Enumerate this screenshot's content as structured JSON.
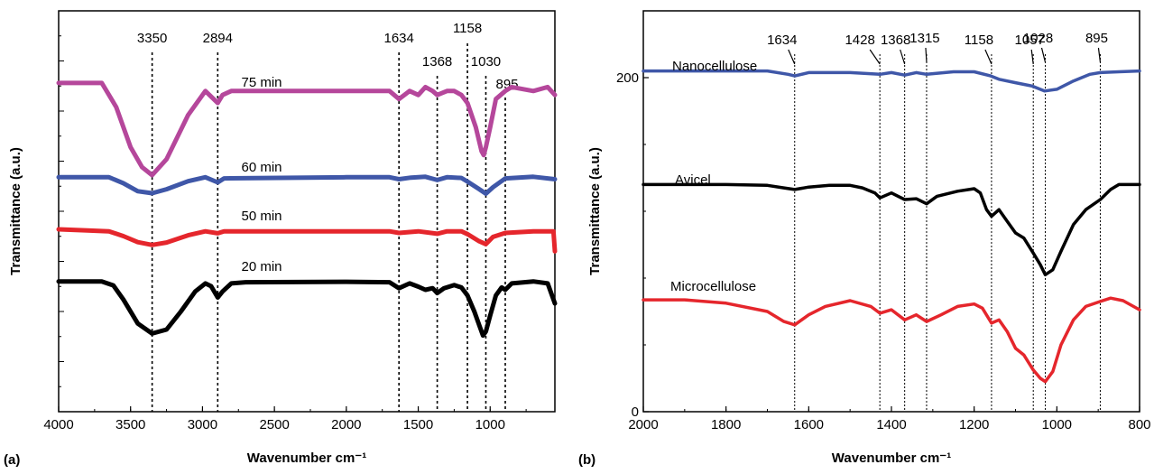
{
  "chart_data": [
    {
      "type": "line",
      "panel_label": "(a)",
      "xlabel": "Wavenumber cm⁻¹",
      "ylabel": "Transmittance (a.u.)",
      "xlim": [
        4000,
        550
      ],
      "x_ticks": [
        4000,
        3500,
        3000,
        2500,
        2000,
        1500,
        1000
      ],
      "y_tick_labels": "none",
      "ylim": [
        0,
        100
      ],
      "peak_lines": [
        {
          "label": "3350",
          "x": 3350
        },
        {
          "label": "2894",
          "x": 2894
        },
        {
          "label": "1634",
          "x": 1634
        },
        {
          "label": "1368",
          "x": 1368
        },
        {
          "label": "1158",
          "x": 1158
        },
        {
          "label": "1030",
          "x": 1030
        },
        {
          "label": "895",
          "x": 895
        }
      ],
      "series": [
        {
          "name": "75 min",
          "color": "#b5479b",
          "base": 82,
          "points": [
            [
              4000,
              82
            ],
            [
              3700,
              82
            ],
            [
              3600,
              76
            ],
            [
              3500,
              66
            ],
            [
              3420,
              61
            ],
            [
              3350,
              59
            ],
            [
              3250,
              63
            ],
            [
              3100,
              74
            ],
            [
              2980,
              80
            ],
            [
              2894,
              77
            ],
            [
              2860,
              79
            ],
            [
              2800,
              80
            ],
            [
              2000,
              80
            ],
            [
              1700,
              80
            ],
            [
              1634,
              78
            ],
            [
              1560,
              80
            ],
            [
              1500,
              79
            ],
            [
              1450,
              81
            ],
            [
              1400,
              80
            ],
            [
              1368,
              79
            ],
            [
              1300,
              80
            ],
            [
              1250,
              80
            ],
            [
              1200,
              79
            ],
            [
              1158,
              77
            ],
            [
              1100,
              71
            ],
            [
              1060,
              65
            ],
            [
              1045,
              64
            ],
            [
              1030,
              66
            ],
            [
              1000,
              71
            ],
            [
              960,
              78
            ],
            [
              895,
              80
            ],
            [
              850,
              81
            ],
            [
              700,
              80
            ],
            [
              600,
              81
            ],
            [
              550,
              79
            ]
          ]
        },
        {
          "name": "60 min",
          "color": "#3f57a8",
          "base": 58.5,
          "points": [
            [
              4000,
              58.5
            ],
            [
              3650,
              58.5
            ],
            [
              3550,
              57
            ],
            [
              3450,
              55
            ],
            [
              3350,
              54.5
            ],
            [
              3250,
              55.5
            ],
            [
              3100,
              57.5
            ],
            [
              2980,
              58.5
            ],
            [
              2894,
              57.2
            ],
            [
              2850,
              58.2
            ],
            [
              2000,
              58.5
            ],
            [
              1700,
              58.5
            ],
            [
              1634,
              58
            ],
            [
              1550,
              58.4
            ],
            [
              1450,
              58.6
            ],
            [
              1368,
              57.8
            ],
            [
              1300,
              58.5
            ],
            [
              1200,
              58.3
            ],
            [
              1158,
              57.4
            ],
            [
              1080,
              55.6
            ],
            [
              1030,
              54.4
            ],
            [
              980,
              56
            ],
            [
              895,
              58.2
            ],
            [
              700,
              58.6
            ],
            [
              550,
              58
            ]
          ]
        },
        {
          "name": "50 min",
          "color": "#e5262c",
          "base": 45,
          "points": [
            [
              4000,
              45.5
            ],
            [
              3800,
              45.2
            ],
            [
              3650,
              45
            ],
            [
              3550,
              43.8
            ],
            [
              3450,
              42.3
            ],
            [
              3350,
              41.6
            ],
            [
              3250,
              42.2
            ],
            [
              3100,
              44
            ],
            [
              2980,
              45
            ],
            [
              2894,
              44.5
            ],
            [
              2850,
              45
            ],
            [
              2000,
              45
            ],
            [
              1700,
              45
            ],
            [
              1634,
              44.6
            ],
            [
              1500,
              45
            ],
            [
              1368,
              44.4
            ],
            [
              1300,
              45
            ],
            [
              1200,
              45
            ],
            [
              1158,
              44.3
            ],
            [
              1080,
              42.6
            ],
            [
              1030,
              41.8
            ],
            [
              980,
              43.6
            ],
            [
              895,
              44.6
            ],
            [
              700,
              45
            ],
            [
              560,
              45
            ],
            [
              550,
              40
            ]
          ]
        },
        {
          "name": "20 min",
          "color": "#000000",
          "base": 32,
          "points": [
            [
              4000,
              32.5
            ],
            [
              3700,
              32.5
            ],
            [
              3620,
              31.5
            ],
            [
              3550,
              28
            ],
            [
              3450,
              22
            ],
            [
              3350,
              19.5
            ],
            [
              3250,
              20.5
            ],
            [
              3150,
              25
            ],
            [
              3050,
              30
            ],
            [
              2980,
              32
            ],
            [
              2940,
              31.3
            ],
            [
              2894,
              28.5
            ],
            [
              2860,
              30
            ],
            [
              2800,
              32
            ],
            [
              2700,
              32.3
            ],
            [
              2000,
              32.4
            ],
            [
              1700,
              32.3
            ],
            [
              1634,
              30.8
            ],
            [
              1560,
              32
            ],
            [
              1500,
              31.2
            ],
            [
              1450,
              30.4
            ],
            [
              1400,
              30.8
            ],
            [
              1368,
              29.6
            ],
            [
              1320,
              30.8
            ],
            [
              1250,
              31.6
            ],
            [
              1200,
              31
            ],
            [
              1158,
              29
            ],
            [
              1110,
              25
            ],
            [
              1070,
              21
            ],
            [
              1050,
              19
            ],
            [
              1030,
              20
            ],
            [
              1000,
              24
            ],
            [
              960,
              29
            ],
            [
              920,
              31
            ],
            [
              895,
              30.4
            ],
            [
              850,
              32
            ],
            [
              700,
              32.5
            ],
            [
              600,
              32
            ],
            [
              550,
              27
            ]
          ]
        }
      ]
    },
    {
      "type": "line",
      "panel_label": "(b)",
      "xlabel": "Wavenumber cm⁻¹",
      "ylabel": "Transmittance (a.u.)",
      "xlim": [
        2000,
        800
      ],
      "x_ticks": [
        2000,
        1800,
        1600,
        1400,
        1200,
        1000,
        800
      ],
      "ylim": [
        0,
        240
      ],
      "y_ticks": [
        0,
        200
      ],
      "peak_lines": [
        {
          "label": "1634",
          "x": 1634
        },
        {
          "label": "1428",
          "x": 1428
        },
        {
          "label": "1368",
          "x": 1368
        },
        {
          "label": "1315",
          "x": 1315
        },
        {
          "label": "1158",
          "x": 1158
        },
        {
          "label": "1057",
          "x": 1057
        },
        {
          "label": "1028",
          "x": 1028
        },
        {
          "label": "895",
          "x": 895
        }
      ],
      "series": [
        {
          "name": "Nanocellulose",
          "color": "#3f57a8",
          "points": [
            [
              2000,
              204
            ],
            [
              1800,
              204
            ],
            [
              1700,
              204
            ],
            [
              1650,
              202
            ],
            [
              1634,
              201
            ],
            [
              1600,
              203
            ],
            [
              1500,
              203
            ],
            [
              1428,
              202
            ],
            [
              1400,
              203
            ],
            [
              1368,
              201.5
            ],
            [
              1340,
              203
            ],
            [
              1315,
              202
            ],
            [
              1250,
              203.5
            ],
            [
              1200,
              203.5
            ],
            [
              1160,
              201
            ],
            [
              1140,
              199
            ],
            [
              1100,
              197
            ],
            [
              1060,
              195
            ],
            [
              1030,
              192
            ],
            [
              1000,
              193
            ],
            [
              960,
              198
            ],
            [
              920,
              202
            ],
            [
              895,
              203
            ],
            [
              850,
              203.5
            ],
            [
              800,
              204
            ]
          ]
        },
        {
          "name": "Avicel",
          "color": "#000000",
          "points": [
            [
              2000,
              136
            ],
            [
              1800,
              136
            ],
            [
              1700,
              135.5
            ],
            [
              1660,
              134
            ],
            [
              1634,
              133
            ],
            [
              1600,
              134.5
            ],
            [
              1550,
              135.5
            ],
            [
              1500,
              135.5
            ],
            [
              1470,
              134
            ],
            [
              1440,
              131
            ],
            [
              1428,
              128
            ],
            [
              1400,
              131
            ],
            [
              1380,
              128.5
            ],
            [
              1368,
              127
            ],
            [
              1340,
              127.5
            ],
            [
              1315,
              124.5
            ],
            [
              1290,
              129
            ],
            [
              1240,
              132
            ],
            [
              1200,
              133.5
            ],
            [
              1185,
              131
            ],
            [
              1170,
              121
            ],
            [
              1158,
              117
            ],
            [
              1140,
              121
            ],
            [
              1120,
              114
            ],
            [
              1100,
              107
            ],
            [
              1080,
              104
            ],
            [
              1057,
              95
            ],
            [
              1040,
              88
            ],
            [
              1028,
              82
            ],
            [
              1010,
              85
            ],
            [
              990,
              96
            ],
            [
              960,
              112
            ],
            [
              930,
              121
            ],
            [
              895,
              127
            ],
            [
              870,
              133
            ],
            [
              850,
              136
            ],
            [
              820,
              136
            ],
            [
              800,
              136
            ]
          ]
        },
        {
          "name": "Microcellulose",
          "color": "#e5262c",
          "points": [
            [
              2000,
              67
            ],
            [
              1900,
              67
            ],
            [
              1800,
              65
            ],
            [
              1700,
              60
            ],
            [
              1660,
              54
            ],
            [
              1634,
              52
            ],
            [
              1600,
              58
            ],
            [
              1560,
              63
            ],
            [
              1500,
              66.5
            ],
            [
              1450,
              63
            ],
            [
              1428,
              59
            ],
            [
              1400,
              61
            ],
            [
              1368,
              55
            ],
            [
              1340,
              58
            ],
            [
              1315,
              54
            ],
            [
              1280,
              58
            ],
            [
              1240,
              63
            ],
            [
              1200,
              64.5
            ],
            [
              1180,
              62
            ],
            [
              1158,
              53
            ],
            [
              1140,
              55
            ],
            [
              1120,
              48
            ],
            [
              1100,
              38
            ],
            [
              1080,
              34
            ],
            [
              1057,
              25
            ],
            [
              1040,
              20
            ],
            [
              1028,
              18
            ],
            [
              1010,
              24
            ],
            [
              990,
              40
            ],
            [
              960,
              55
            ],
            [
              930,
              63
            ],
            [
              895,
              66
            ],
            [
              870,
              68
            ],
            [
              840,
              66.5
            ],
            [
              800,
              61
            ]
          ]
        }
      ]
    }
  ]
}
